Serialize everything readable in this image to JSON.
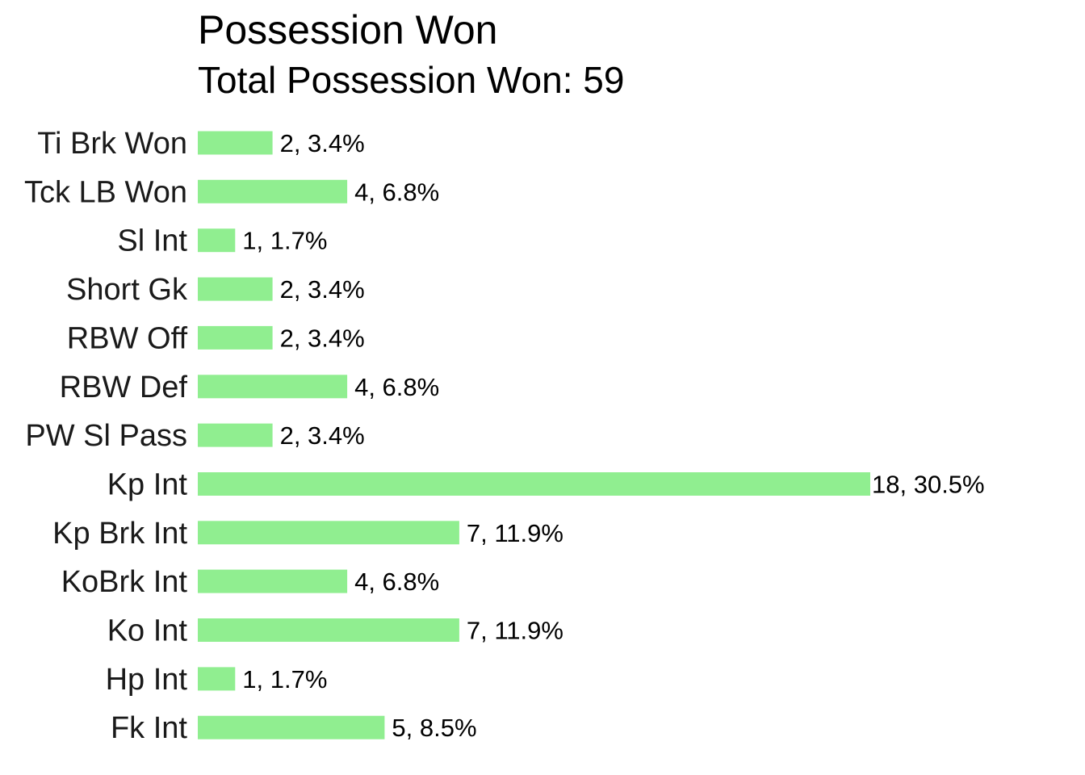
{
  "chart_data": {
    "type": "bar",
    "orientation": "horizontal",
    "title": "Possession Won",
    "subtitle": "Total Possession Won: 59",
    "xlabel": "",
    "ylabel": "",
    "categories": [
      "Ti Brk Won",
      "Tck LB Won",
      "Sl Int",
      "Short Gk",
      "RBW Off",
      "RBW Def",
      "PW Sl Pass",
      "Kp Int",
      "Kp Brk Int",
      "KoBrk Int",
      "Ko Int",
      "Hp Int",
      "Fk Int"
    ],
    "values": [
      2,
      4,
      1,
      2,
      2,
      4,
      2,
      18,
      7,
      4,
      7,
      1,
      5
    ],
    "data_labels": [
      "2, 3.4%",
      "4, 6.8%",
      "1, 1.7%",
      "2, 3.4%",
      "2, 3.4%",
      "4, 6.8%",
      "2, 3.4%",
      "18, 30.5%",
      "7, 11.9%",
      "4, 6.8%",
      "7, 11.9%",
      "1, 1.7%",
      "5, 8.5%"
    ],
    "xlim": [
      0,
      18
    ],
    "grid": false,
    "legend": "none",
    "bar_color": "#90ee90"
  }
}
